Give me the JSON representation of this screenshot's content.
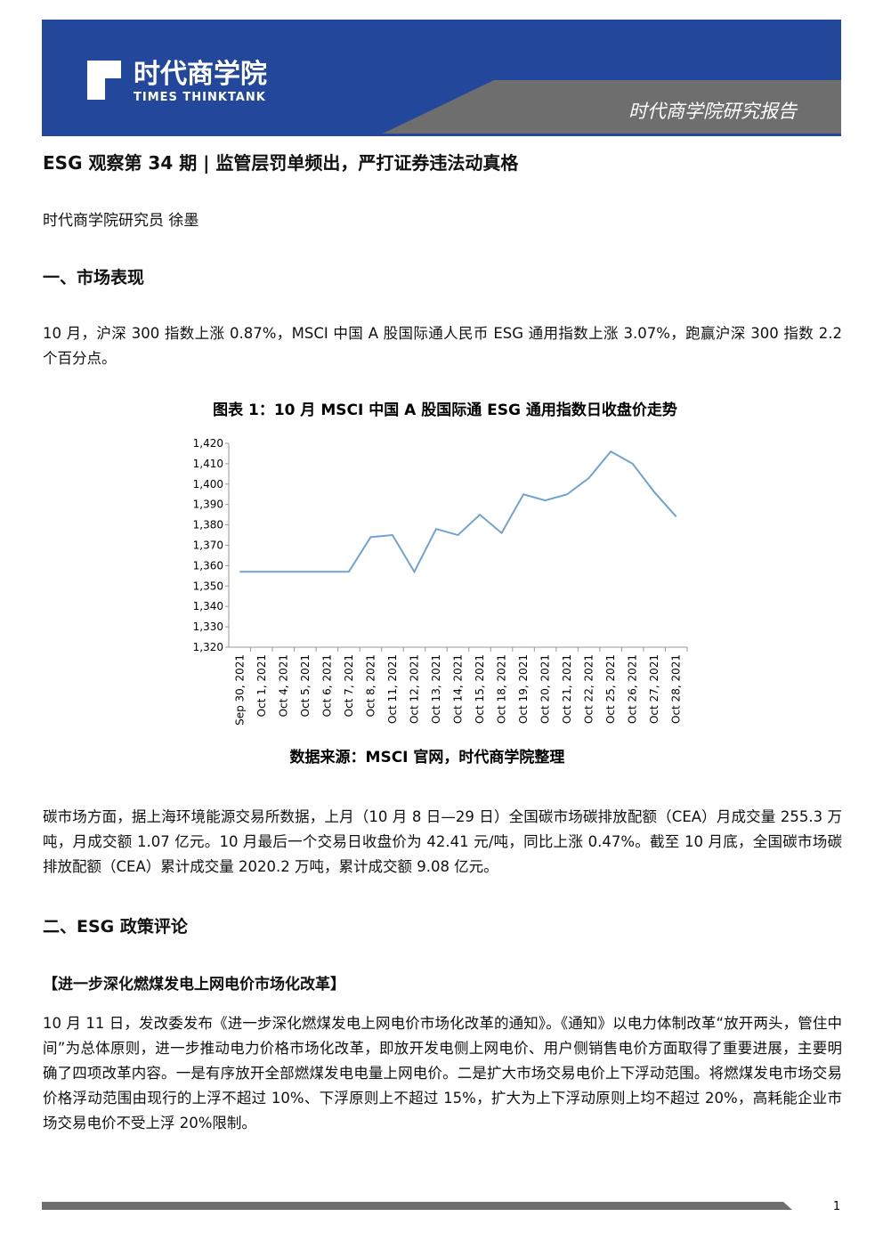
{
  "header": {
    "logo_cn": "时代商学院",
    "logo_en": "TIMES THINKTANK",
    "report": "时代商学院研究报告"
  },
  "title": "ESG 观察第 34 期 | 监管层罚单频出，严打证券违法动真格",
  "author": "时代商学院研究员 徐墨",
  "section1": {
    "heading": "一、市场表现",
    "paragraph": "10 月，沪深 300 指数上涨 0.87%，MSCI 中国 A 股国际通人民币 ESG 通用指数上涨 3.07%，跑赢沪深 300 指数 2.2 个百分点。",
    "paragraph2": "碳市场方面，据上海环境能源交易所数据，上月（10 月 8 日—29 日）全国碳市场碳排放配额（CEA）月成交量 255.3 万吨，月成交额 1.07 亿元。10 月最后一个交易日收盘价为 42.41 元/吨，同比上涨 0.47%。截至 10 月底，全国碳市场碳排放配额（CEA）累计成交量 2020.2 万吨，累计成交额 9.08 亿元。"
  },
  "chart_data": {
    "type": "line",
    "title": "图表 1：10 月 MSCI 中国 A 股国际通 ESG 通用指数日收盘价走势",
    "source": "数据来源：MSCI 官网，时代商学院整理",
    "categories": [
      "Sep 30, 2021",
      "Oct 1, 2021",
      "Oct 4, 2021",
      "Oct 5, 2021",
      "Oct 6, 2021",
      "Oct 7, 2021",
      "Oct 8, 2021",
      "Oct 11, 2021",
      "Oct 12, 2021",
      "Oct 13, 2021",
      "Oct 14, 2021",
      "Oct 15, 2021",
      "Oct 18, 2021",
      "Oct 19, 2021",
      "Oct 20, 2021",
      "Oct 21, 2021",
      "Oct 22, 2021",
      "Oct 25, 2021",
      "Oct 26, 2021",
      "Oct 27, 2021",
      "Oct 28, 2021"
    ],
    "values": [
      1357,
      1357,
      1357,
      1357,
      1357,
      1357,
      1374,
      1375,
      1357,
      1378,
      1375,
      1385,
      1376,
      1395,
      1392,
      1395,
      1403,
      1416,
      1410,
      1396,
      1384
    ],
    "color": "#6fa3d0",
    "ylim": [
      1320,
      1420
    ],
    "yticks": [
      {
        "value": 1320,
        "label": "1,320"
      },
      {
        "value": 1330,
        "label": "1,330"
      },
      {
        "value": 1340,
        "label": "1,340"
      },
      {
        "value": 1350,
        "label": "1,350"
      },
      {
        "value": 1360,
        "label": "1,360"
      },
      {
        "value": 1370,
        "label": "1,370"
      },
      {
        "value": 1380,
        "label": "1,380"
      },
      {
        "value": 1390,
        "label": "1,390"
      },
      {
        "value": 1400,
        "label": "1,400"
      },
      {
        "value": 1410,
        "label": "1,410"
      },
      {
        "value": 1420,
        "label": "1,420"
      }
    ],
    "grid": false
  },
  "section2": {
    "heading": "二、ESG 政策评论",
    "subheading": "【进一步深化燃煤发电上网电价市场化改革】",
    "paragraph": "10 月 11 日，发改委发布《进一步深化燃煤发电上网电价市场化改革的通知》。《通知》以电力体制改革“放开两头，管住中间”为总体原则，进一步推动电力价格市场化改革，即放开发电侧上网电价、用户侧销售电价方面取得了重要进展，主要明确了四项改革内容。一是有序放开全部燃煤发电电量上网电价。二是扩大市场交易电价上下浮动范围。将燃煤发电市场交易价格浮动范围由现行的上浮不超过 10%、下浮原则上不超过 15%，扩大为上下浮动原则上均不超过 20%，高耗能企业市场交易电价不受上浮 20%限制。"
  },
  "footer": {
    "page": "1"
  }
}
